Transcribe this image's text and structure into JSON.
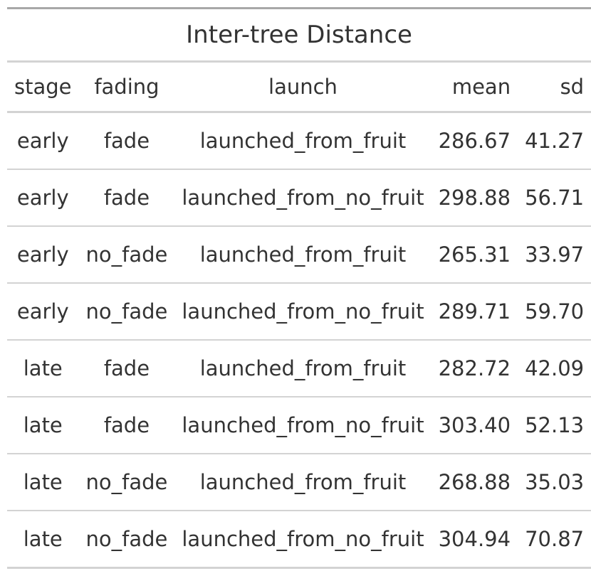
{
  "chart_data": {
    "type": "table",
    "title": "Inter-tree Distance",
    "columns": [
      {
        "key": "stage",
        "label": "stage",
        "align": "center"
      },
      {
        "key": "fading",
        "label": "fading",
        "align": "center"
      },
      {
        "key": "launch",
        "label": "launch",
        "align": "center"
      },
      {
        "key": "mean",
        "label": "mean",
        "align": "right"
      },
      {
        "key": "sd",
        "label": "sd",
        "align": "right"
      }
    ],
    "rows": [
      {
        "stage": "early",
        "fading": "fade",
        "launch": "launched_from_fruit",
        "mean": "286.67",
        "sd": "41.27"
      },
      {
        "stage": "early",
        "fading": "fade",
        "launch": "launched_from_no_fruit",
        "mean": "298.88",
        "sd": "56.71"
      },
      {
        "stage": "early",
        "fading": "no_fade",
        "launch": "launched_from_fruit",
        "mean": "265.31",
        "sd": "33.97"
      },
      {
        "stage": "early",
        "fading": "no_fade",
        "launch": "launched_from_no_fruit",
        "mean": "289.71",
        "sd": "59.70"
      },
      {
        "stage": "late",
        "fading": "fade",
        "launch": "launched_from_fruit",
        "mean": "282.72",
        "sd": "42.09"
      },
      {
        "stage": "late",
        "fading": "fade",
        "launch": "launched_from_no_fruit",
        "mean": "303.40",
        "sd": "52.13"
      },
      {
        "stage": "late",
        "fading": "no_fade",
        "launch": "launched_from_fruit",
        "mean": "268.88",
        "sd": "35.03"
      },
      {
        "stage": "late",
        "fading": "no_fade",
        "launch": "launched_from_no_fruit",
        "mean": "304.94",
        "sd": "70.87"
      }
    ]
  }
}
